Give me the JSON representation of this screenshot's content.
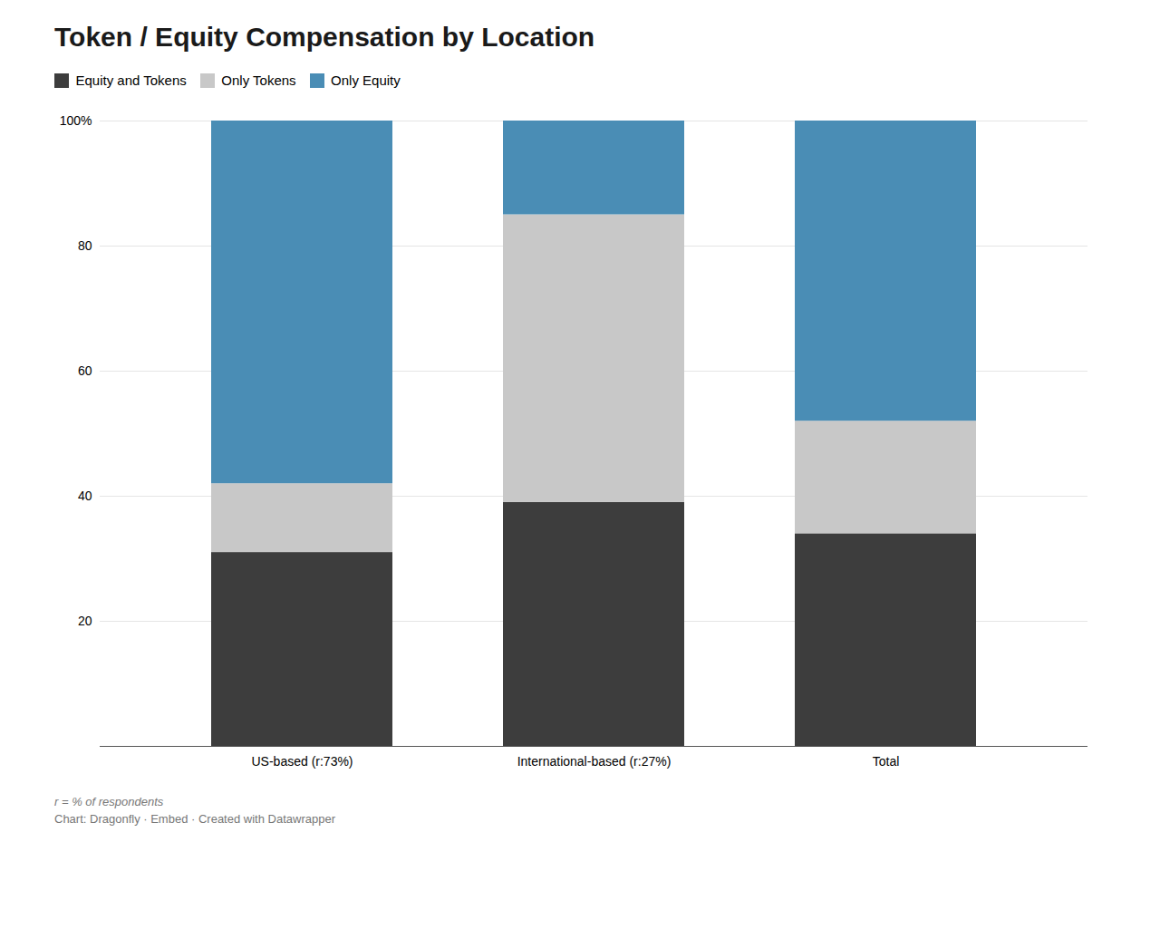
{
  "chart_data": {
    "type": "bar",
    "stacked": true,
    "title": "Token / Equity Compensation by Location",
    "categories": [
      "US-based (r:73%)",
      "International-based (r:27%)",
      "Total"
    ],
    "series": [
      {
        "name": "Equity and Tokens",
        "color": "#3d3d3d",
        "values": [
          31,
          39,
          34
        ]
      },
      {
        "name": "Only Tokens",
        "color": "#c8c8c8",
        "values": [
          11,
          46,
          18
        ]
      },
      {
        "name": "Only Equity",
        "color": "#4a8db5",
        "values": [
          58,
          15,
          48
        ]
      }
    ],
    "ylim": [
      0,
      100
    ],
    "yticks": [
      {
        "value": 0,
        "label": ""
      },
      20,
      40,
      60,
      80,
      {
        "value": 100,
        "label": "100%"
      }
    ],
    "grid": true,
    "legend": "top",
    "annotations": [
      "r = % of respondents",
      "Chart: Dragonfly · Embed · Created with Datawrapper"
    ]
  }
}
